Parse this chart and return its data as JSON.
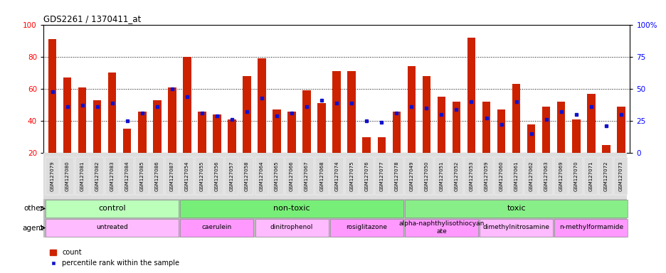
{
  "title": "GDS2261 / 1370411_at",
  "samples": [
    "GSM127079",
    "GSM127080",
    "GSM127081",
    "GSM127082",
    "GSM127083",
    "GSM127084",
    "GSM127085",
    "GSM127086",
    "GSM127087",
    "GSM127054",
    "GSM127055",
    "GSM127056",
    "GSM127057",
    "GSM127058",
    "GSM127064",
    "GSM127065",
    "GSM127066",
    "GSM127067",
    "GSM127068",
    "GSM127074",
    "GSM127075",
    "GSM127076",
    "GSM127077",
    "GSM127078",
    "GSM127049",
    "GSM127050",
    "GSM127051",
    "GSM127052",
    "GSM127053",
    "GSM127059",
    "GSM127060",
    "GSM127061",
    "GSM127062",
    "GSM127063",
    "GSM127069",
    "GSM127070",
    "GSM127071",
    "GSM127072",
    "GSM127073"
  ],
  "count_values": [
    91,
    67,
    61,
    53,
    70,
    35,
    46,
    53,
    61,
    80,
    46,
    44,
    41,
    68,
    79,
    47,
    46,
    59,
    51,
    71,
    71,
    30,
    30,
    46,
    74,
    68,
    55,
    52,
    92,
    52,
    47,
    63,
    38,
    49,
    52,
    41,
    57,
    25,
    49
  ],
  "percentile_values": [
    58,
    49,
    50,
    49,
    51,
    40,
    45,
    49,
    60,
    55,
    45,
    43,
    41,
    46,
    54,
    43,
    45,
    49,
    53,
    51,
    51,
    40,
    39,
    45,
    49,
    48,
    44,
    47,
    52,
    42,
    38,
    52,
    32,
    41,
    46,
    44,
    49,
    37,
    44
  ],
  "bar_color": "#cc2200",
  "dot_color": "#1111cc",
  "ylim_left": [
    20,
    100
  ],
  "ylim_right": [
    0,
    100
  ],
  "yticks_left": [
    20,
    40,
    60,
    80,
    100
  ],
  "ytick_labels_left": [
    "20",
    "40",
    "60",
    "80",
    "100"
  ],
  "yticks_right": [
    0,
    25,
    50,
    75,
    100
  ],
  "ytick_labels_right": [
    "0",
    "25",
    "50",
    "75",
    "100%"
  ],
  "grid_values": [
    40,
    60,
    80
  ],
  "groups_other": [
    {
      "label": "control",
      "start": 0,
      "end": 9,
      "color": "#bbffbb"
    },
    {
      "label": "non-toxic",
      "start": 9,
      "end": 24,
      "color": "#77ee77"
    },
    {
      "label": "toxic",
      "start": 24,
      "end": 39,
      "color": "#88ee88"
    }
  ],
  "groups_agent": [
    {
      "label": "untreated",
      "start": 0,
      "end": 9,
      "color": "#ffbbff"
    },
    {
      "label": "caerulein",
      "start": 9,
      "end": 14,
      "color": "#ff99ff"
    },
    {
      "label": "dinitrophenol",
      "start": 14,
      "end": 19,
      "color": "#ffbbff"
    },
    {
      "label": "rosiglitazone",
      "start": 19,
      "end": 24,
      "color": "#ff99ff"
    },
    {
      "label": "alpha-naphthylisothiocyan\nate",
      "start": 24,
      "end": 29,
      "color": "#ff99ff"
    },
    {
      "label": "dimethylnitrosamine",
      "start": 29,
      "end": 34,
      "color": "#ffbbff"
    },
    {
      "label": "n-methylformamide",
      "start": 34,
      "end": 39,
      "color": "#ff99ff"
    }
  ],
  "other_label": "other",
  "agent_label": "agent",
  "legend_count": "count",
  "legend_percentile": "percentile rank within the sample",
  "chart_bg": "white",
  "tick_bg": "#dddddd",
  "row_other_bg": "#cccccc",
  "row_agent_bg": "#cccccc"
}
